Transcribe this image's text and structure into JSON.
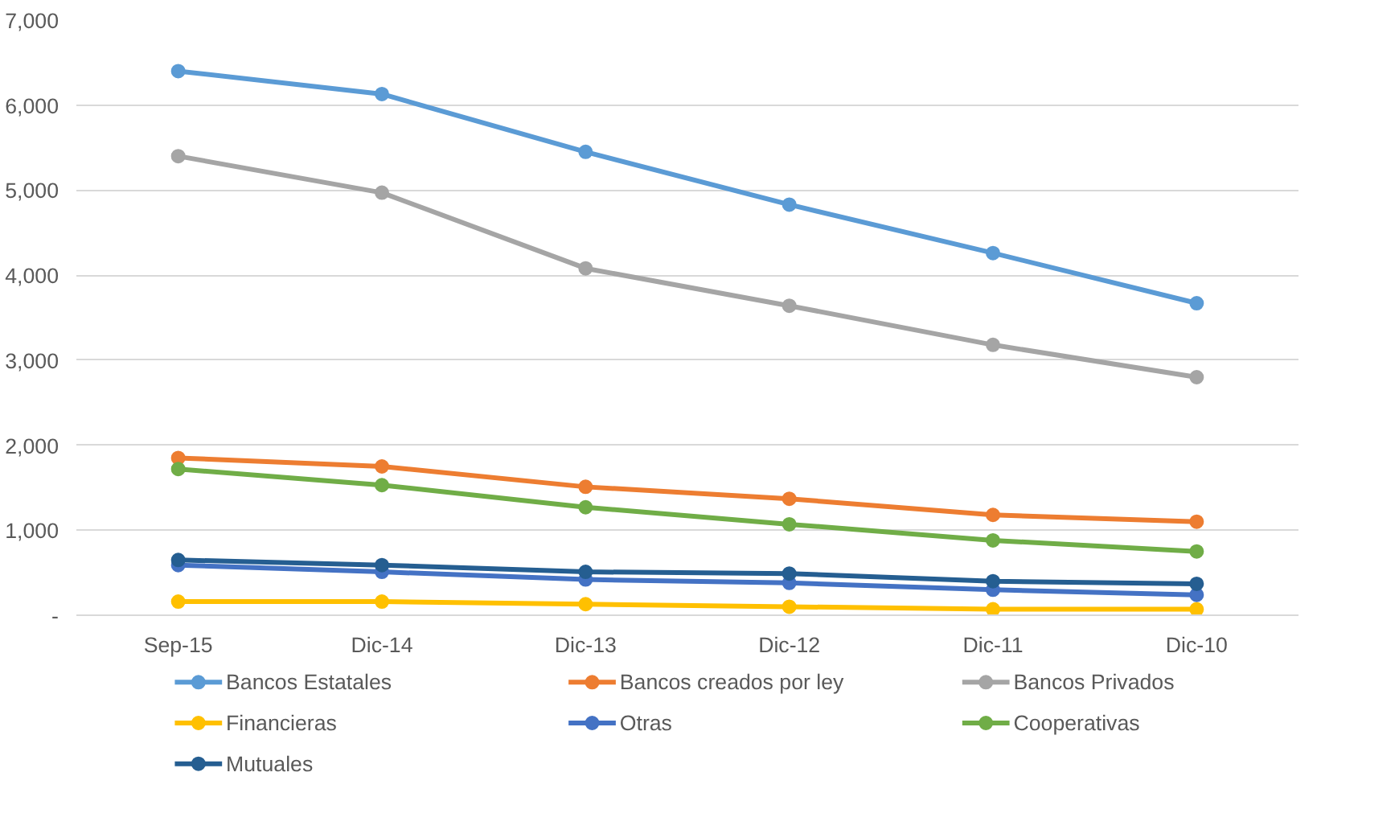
{
  "chart_data": {
    "type": "line",
    "categories": [
      "Sep-15",
      "Dic-14",
      "Dic-13",
      "Dic-12",
      "Dic-11",
      "Dic-10"
    ],
    "ylim": [
      0,
      7000
    ],
    "yticks": [
      {
        "value": 0,
        "label": "-"
      },
      {
        "value": 1000,
        "label": "1,000"
      },
      {
        "value": 2000,
        "label": "2,000"
      },
      {
        "value": 3000,
        "label": "3,000"
      },
      {
        "value": 4000,
        "label": "4,000"
      },
      {
        "value": 5000,
        "label": "5,000"
      },
      {
        "value": 6000,
        "label": "6,000"
      },
      {
        "value": 7000,
        "label": "7,000"
      }
    ],
    "grid": "y",
    "legend": "bottom",
    "marker": "circle",
    "line_style": "solid",
    "series": [
      {
        "name": "Bancos Estatales",
        "color": "#5b9bd5",
        "values": [
          6400,
          6130,
          5450,
          4830,
          4260,
          3670
        ]
      },
      {
        "name": "Bancos creados por ley",
        "color": "#ed7d31",
        "values": [
          1850,
          1750,
          1510,
          1370,
          1180,
          1100
        ]
      },
      {
        "name": "Bancos Privados",
        "color": "#a5a5a5",
        "values": [
          5400,
          4970,
          4080,
          3640,
          3180,
          2800
        ]
      },
      {
        "name": "Financieras",
        "color": "#ffc000",
        "values": [
          160,
          160,
          130,
          100,
          70,
          70
        ]
      },
      {
        "name": "Otras",
        "color": "#4472c4",
        "values": [
          590,
          510,
          420,
          380,
          300,
          240
        ]
      },
      {
        "name": "Cooperativas",
        "color": "#70ad47",
        "values": [
          1720,
          1530,
          1270,
          1070,
          880,
          750
        ]
      },
      {
        "name": "Mutuales",
        "color": "#255e91",
        "values": [
          650,
          590,
          510,
          490,
          400,
          370
        ]
      }
    ]
  }
}
